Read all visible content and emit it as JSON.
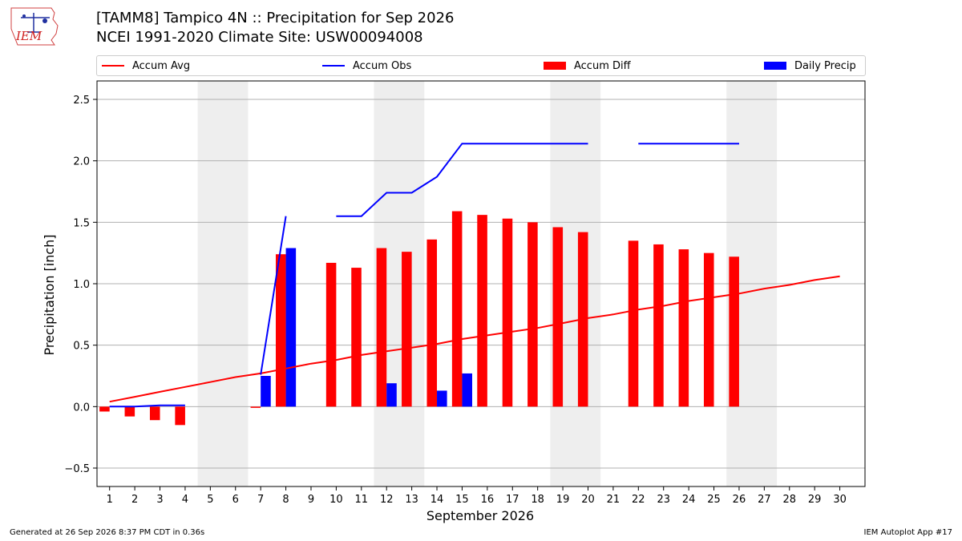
{
  "header": {
    "title_line1": "[TAMM8] Tampico 4N :: Precipitation for Sep 2026",
    "title_line2": "NCEI 1991-2020 Climate Site: USW00094008",
    "logo_text": "IEM"
  },
  "footer": {
    "generated": "Generated at 26 Sep 2026 8:37 PM CDT in 0.36s",
    "app": "IEM Autoplot App #17"
  },
  "colors": {
    "avg": "#ff0000",
    "obs": "#0000ff",
    "diff": "#ff0000",
    "daily": "#0000ff",
    "weekend_shade": "#eeeeee"
  },
  "chart_data": {
    "type": "bar",
    "title": "[TAMM8] Tampico 4N :: Precipitation for Sep 2026",
    "subtitle": "NCEI 1991-2020 Climate Site: USW00094008",
    "xlabel": "September 2026",
    "ylabel": "Precipitation [inch]",
    "ylim": [
      -0.65,
      2.65
    ],
    "xlim": [
      0.5,
      31
    ],
    "yticks": [
      -0.5,
      0.0,
      0.5,
      1.0,
      1.5,
      2.0,
      2.5
    ],
    "ytick_labels": [
      "−0.5",
      "0.0",
      "0.5",
      "1.0",
      "1.5",
      "2.0",
      "2.5"
    ],
    "x": [
      1,
      2,
      3,
      4,
      5,
      6,
      7,
      8,
      9,
      10,
      11,
      12,
      13,
      14,
      15,
      16,
      17,
      18,
      19,
      20,
      21,
      22,
      23,
      24,
      25,
      26,
      27,
      28,
      29,
      30
    ],
    "xtick_labels": [
      "1",
      "2",
      "3",
      "4",
      "5",
      "6",
      "7",
      "8",
      "9",
      "10",
      "11",
      "12",
      "13",
      "14",
      "15",
      "16",
      "17",
      "18",
      "19",
      "20",
      "21",
      "22",
      "23",
      "24",
      "25",
      "26",
      "27",
      "28",
      "29",
      "30"
    ],
    "grid": "horizontal",
    "legend_placement": "top",
    "shaded_weekends": [
      [
        5,
        6
      ],
      [
        12,
        13
      ],
      [
        19,
        20
      ],
      [
        26,
        27
      ]
    ],
    "series": [
      {
        "name": "Accum Avg",
        "type": "line",
        "values": [
          0.04,
          0.08,
          0.12,
          0.16,
          0.2,
          0.24,
          0.27,
          0.31,
          0.35,
          0.38,
          0.42,
          0.45,
          0.48,
          0.51,
          0.55,
          0.58,
          0.61,
          0.64,
          0.68,
          0.72,
          0.75,
          0.79,
          0.82,
          0.86,
          0.89,
          0.92,
          0.96,
          0.99,
          1.03,
          1.06
        ]
      },
      {
        "name": "Accum Obs",
        "type": "line",
        "values": [
          0.0,
          0.0,
          0.01,
          0.01,
          null,
          null,
          0.26,
          1.55,
          null,
          1.55,
          1.55,
          1.74,
          1.74,
          1.87,
          2.14,
          2.14,
          2.14,
          2.14,
          2.14,
          2.14,
          null,
          2.14,
          2.14,
          2.14,
          2.14,
          2.14,
          null,
          null,
          null,
          null
        ]
      },
      {
        "name": "Accum Diff",
        "type": "bar",
        "values": [
          -0.04,
          -0.08,
          -0.11,
          -0.15,
          null,
          null,
          -0.01,
          1.24,
          null,
          1.17,
          1.13,
          1.29,
          1.26,
          1.36,
          1.59,
          1.56,
          1.53,
          1.5,
          1.46,
          1.42,
          null,
          1.35,
          1.32,
          1.28,
          1.25,
          1.22,
          null,
          null,
          null,
          null
        ]
      },
      {
        "name": "Daily Precip",
        "type": "bar",
        "values": [
          0,
          0,
          0,
          0,
          null,
          null,
          0.25,
          1.29,
          null,
          0,
          0,
          0.19,
          0,
          0.13,
          0.27,
          0,
          0,
          0,
          0,
          0,
          null,
          0,
          0,
          0,
          0,
          0,
          null,
          null,
          null,
          null
        ]
      }
    ]
  }
}
